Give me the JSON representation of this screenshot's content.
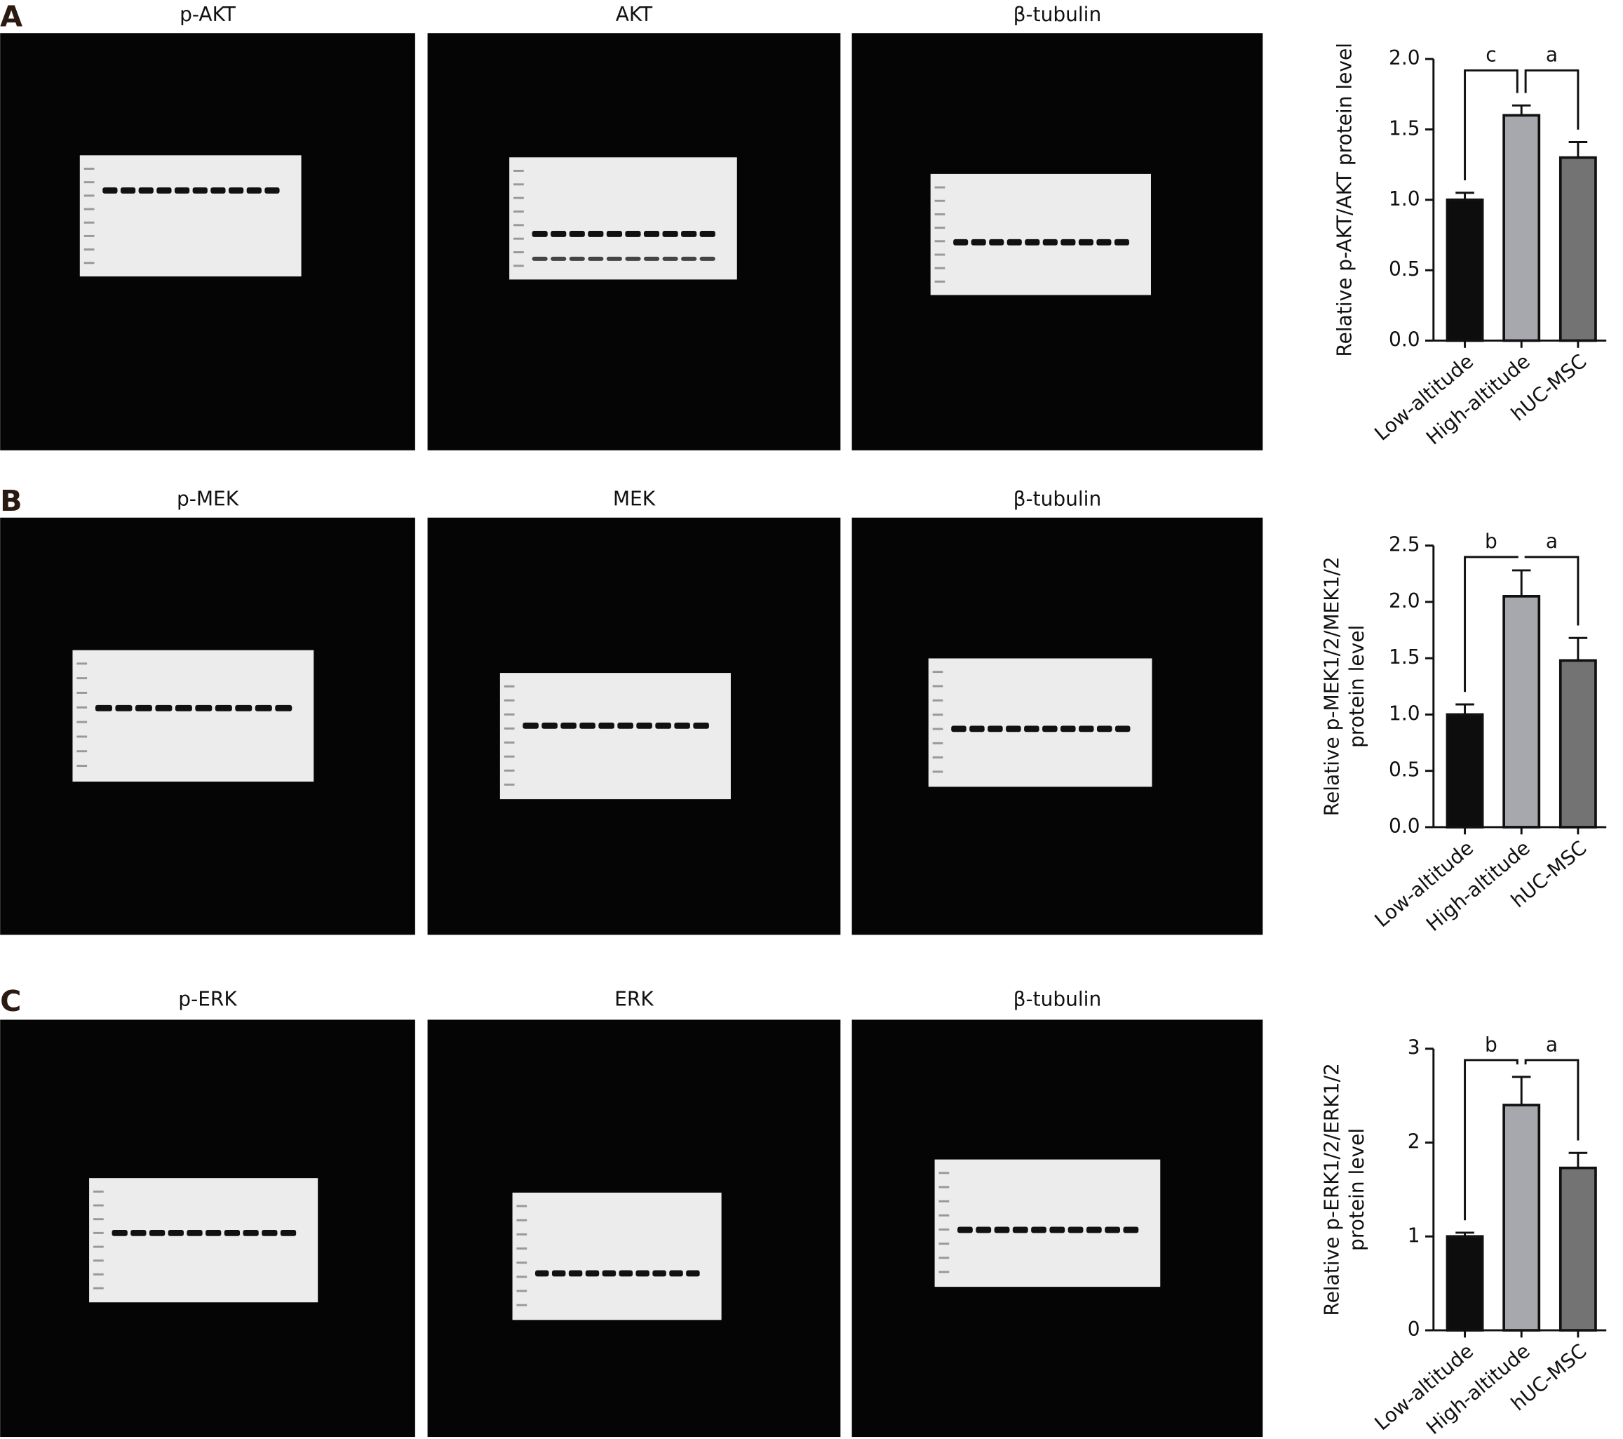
{
  "panels": [
    {
      "letter": "A",
      "blots": [
        "p-AKT",
        "AKT",
        "β-tubulin"
      ]
    },
    {
      "letter": "B",
      "blots": [
        "p-MEK",
        "MEK",
        "β-tubulin"
      ]
    },
    {
      "letter": "C",
      "blots": [
        "p-ERK",
        "ERK",
        "β-tubulin"
      ]
    }
  ],
  "chart_data": [
    {
      "type": "bar",
      "ylabel": [
        "Relative p-AKT/AKT protein level"
      ],
      "categories": [
        "Low-altitude",
        "High-altitude",
        "hUC-MSC"
      ],
      "values": [
        1.0,
        1.6,
        1.3
      ],
      "errors": [
        0.05,
        0.07,
        0.11
      ],
      "colors": [
        "#0d0d0d",
        "#a7a7ae",
        "#737373"
      ],
      "ylim": [
        0,
        2
      ],
      "yticks": [
        {
          "value": 0,
          "label": "0.0"
        },
        {
          "value": 0.5,
          "label": "0.5"
        },
        {
          "value": 1,
          "label": "1.0"
        },
        {
          "value": 1.5,
          "label": "1.5"
        },
        {
          "value": 2,
          "label": "2.0"
        }
      ],
      "brackets": [
        {
          "label": "c",
          "from": 0,
          "to": 1
        },
        {
          "label": "a",
          "from": 1,
          "to": 2
        }
      ]
    },
    {
      "type": "bar",
      "ylabel": [
        "Relative p-MEK1/2/MEK1/2",
        "protein level"
      ],
      "categories": [
        "Low-altitude",
        "High-altitude",
        "hUC-MSC"
      ],
      "values": [
        1.0,
        2.05,
        1.48
      ],
      "errors": [
        0.09,
        0.23,
        0.2
      ],
      "colors": [
        "#0d0d0d",
        "#a7a7ae",
        "#737373"
      ],
      "ylim": [
        0,
        2.5
      ],
      "yticks": [
        {
          "value": 0,
          "label": "0.0"
        },
        {
          "value": 0.5,
          "label": "0.5"
        },
        {
          "value": 1,
          "label": "1.0"
        },
        {
          "value": 1.5,
          "label": "1.5"
        },
        {
          "value": 2,
          "label": "2.0"
        },
        {
          "value": 2.5,
          "label": "2.5"
        }
      ],
      "brackets": [
        {
          "label": "b",
          "from": 0,
          "to": 1
        },
        {
          "label": "a",
          "from": 1,
          "to": 2
        }
      ]
    },
    {
      "type": "bar",
      "ylabel": [
        "Relative p-ERK1/2/ERK1/2",
        "protein level"
      ],
      "categories": [
        "Low-altitude",
        "High-altitude",
        "hUC-MSC"
      ],
      "values": [
        1.0,
        2.4,
        1.73
      ],
      "errors": [
        0.04,
        0.3,
        0.16
      ],
      "colors": [
        "#0d0d0d",
        "#a7a7ae",
        "#737373"
      ],
      "ylim": [
        0,
        3
      ],
      "yticks": [
        0,
        1,
        2,
        3
      ],
      "brackets": [
        {
          "label": "b",
          "from": 0,
          "to": 1
        },
        {
          "label": "a",
          "from": 1,
          "to": 2
        }
      ]
    }
  ]
}
